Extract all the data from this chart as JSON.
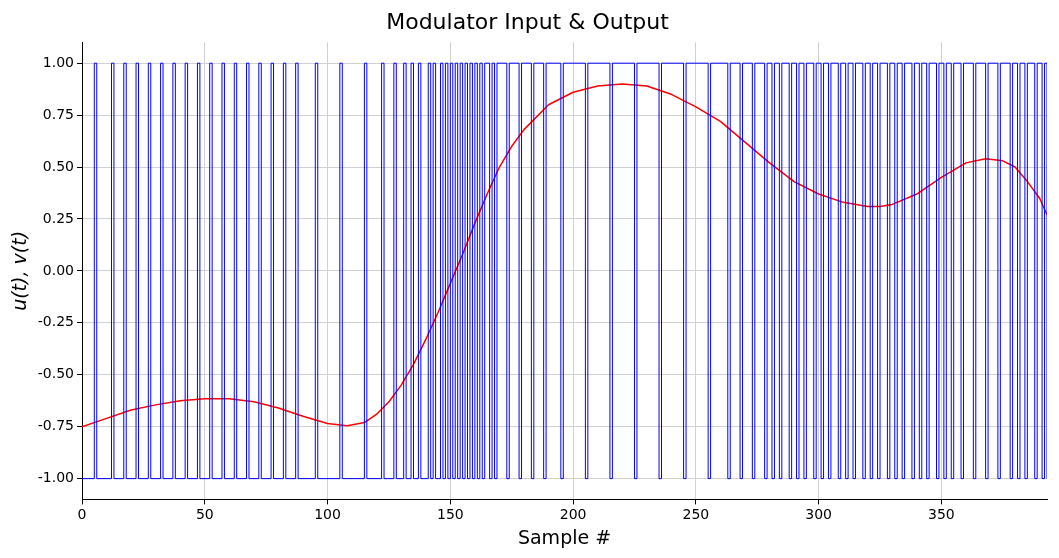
{
  "chart_data": {
    "type": "step",
    "title": "Modulator Input & Output",
    "xlabel": "Sample #",
    "ylabel": "u(t), v(t)",
    "xlim": [
      0,
      393
    ],
    "xticks": [
      0,
      50,
      100,
      150,
      200,
      250,
      300,
      350
    ],
    "ylim": [
      -1.1,
      1.1
    ],
    "yticks": [
      {
        "value": -1,
        "label": "-1.00"
      },
      {
        "value": -0.75,
        "label": "-0.75"
      },
      {
        "value": -0.5,
        "label": "-0.50"
      },
      {
        "value": -0.25,
        "label": "-0.25"
      },
      {
        "value": 0,
        "label": "0.00"
      },
      {
        "value": 0.25,
        "label": "0.25"
      },
      {
        "value": 0.5,
        "label": "0.50"
      },
      {
        "value": 0.75,
        "label": "0.75"
      },
      {
        "value": 1,
        "label": "1.00"
      }
    ],
    "grid": true,
    "series": [
      {
        "color": "#0000ff",
        "x": [
          0,
          5,
          6,
          12,
          13,
          17,
          18,
          22,
          23,
          27,
          28,
          32,
          33,
          37,
          38,
          42,
          43,
          47,
          48,
          52,
          53,
          57,
          58,
          62,
          63,
          67,
          68,
          72,
          73,
          77,
          78,
          82,
          83,
          87,
          88,
          95,
          96,
          105,
          106,
          115,
          116,
          122,
          123,
          127,
          128,
          131,
          132,
          134,
          135,
          137,
          138,
          141,
          142,
          143,
          144,
          146,
          147,
          148,
          149,
          150,
          151,
          152,
          153,
          154,
          155,
          156,
          157,
          158,
          159,
          160,
          161,
          162,
          163,
          164,
          166,
          167,
          168,
          169,
          173,
          174,
          178,
          179,
          183,
          184,
          188,
          189,
          195,
          196,
          205,
          206,
          215,
          216,
          225,
          226,
          235,
          236,
          245,
          246,
          255,
          256,
          263,
          264,
          268,
          269,
          273,
          274,
          278,
          279,
          281,
          282,
          284,
          285,
          288,
          289,
          291,
          292,
          294,
          295,
          298,
          299,
          301,
          302,
          304,
          305,
          308,
          309,
          311,
          312,
          314,
          315,
          318,
          319,
          321,
          322,
          324,
          325,
          328,
          329,
          331,
          332,
          334,
          335,
          338,
          339,
          341,
          342,
          344,
          345,
          348,
          349,
          351,
          352,
          354,
          355,
          358,
          359,
          363,
          364,
          368,
          369,
          373,
          374,
          378,
          379,
          381,
          382,
          384,
          385,
          388,
          389,
          391,
          392,
          393
        ],
        "values": [
          -1,
          1,
          -1,
          1,
          -1,
          1,
          -1,
          1,
          -1,
          1,
          -1,
          1,
          -1,
          1,
          -1,
          1,
          -1,
          1,
          -1,
          1,
          -1,
          1,
          -1,
          1,
          -1,
          1,
          -1,
          1,
          -1,
          1,
          -1,
          1,
          -1,
          1,
          -1,
          1,
          -1,
          1,
          -1,
          1,
          -1,
          1,
          -1,
          1,
          -1,
          1,
          -1,
          1,
          -1,
          1,
          -1,
          1,
          -1,
          1,
          -1,
          1,
          -1,
          1,
          -1,
          1,
          -1,
          1,
          -1,
          1,
          -1,
          1,
          -1,
          1,
          -1,
          1,
          -1,
          1,
          -1,
          1,
          -1,
          1,
          -1,
          1,
          -1,
          1,
          -1,
          1,
          -1,
          1,
          -1,
          1,
          -1,
          1,
          -1,
          1,
          -1,
          1,
          -1,
          1,
          -1,
          1,
          -1,
          1,
          -1,
          1,
          -1,
          1,
          -1,
          1,
          -1,
          1,
          -1,
          1,
          -1,
          1,
          -1,
          1,
          -1,
          1,
          -1,
          1,
          -1,
          1,
          -1,
          1,
          -1,
          1,
          -1,
          1,
          -1,
          1,
          -1,
          1,
          -1,
          1,
          -1,
          1,
          -1,
          1,
          -1,
          1,
          -1,
          1,
          -1,
          1,
          -1,
          1,
          -1,
          1,
          -1,
          1,
          -1,
          1,
          -1,
          1,
          -1,
          1,
          -1,
          1,
          -1,
          1,
          -1,
          1,
          -1,
          1,
          -1,
          1,
          -1,
          1,
          -1,
          1,
          -1,
          1,
          -1,
          1,
          -1,
          1,
          -1
        ]
      },
      {
        "type": "line",
        "color": "#ff0000",
        "x": [
          0,
          10,
          20,
          30,
          40,
          50,
          60,
          70,
          80,
          90,
          100,
          108,
          115,
          120,
          125,
          130,
          135,
          140,
          145,
          150,
          155,
          160,
          165,
          170,
          175,
          180,
          190,
          200,
          210,
          220,
          230,
          240,
          250,
          260,
          270,
          280,
          290,
          300,
          310,
          320,
          325,
          330,
          340,
          350,
          360,
          368,
          375,
          380,
          385,
          390,
          393
        ],
        "values": [
          -0.75,
          -0.71,
          -0.67,
          -0.645,
          -0.625,
          -0.615,
          -0.615,
          -0.63,
          -0.66,
          -0.7,
          -0.735,
          -0.745,
          -0.73,
          -0.69,
          -0.63,
          -0.55,
          -0.45,
          -0.33,
          -0.2,
          -0.06,
          0.08,
          0.23,
          0.37,
          0.5,
          0.6,
          0.68,
          0.8,
          0.86,
          0.89,
          0.9,
          0.89,
          0.85,
          0.79,
          0.72,
          0.62,
          0.52,
          0.43,
          0.37,
          0.33,
          0.31,
          0.31,
          0.32,
          0.37,
          0.45,
          0.52,
          0.54,
          0.53,
          0.5,
          0.43,
          0.35,
          0.27
        ]
      }
    ]
  }
}
